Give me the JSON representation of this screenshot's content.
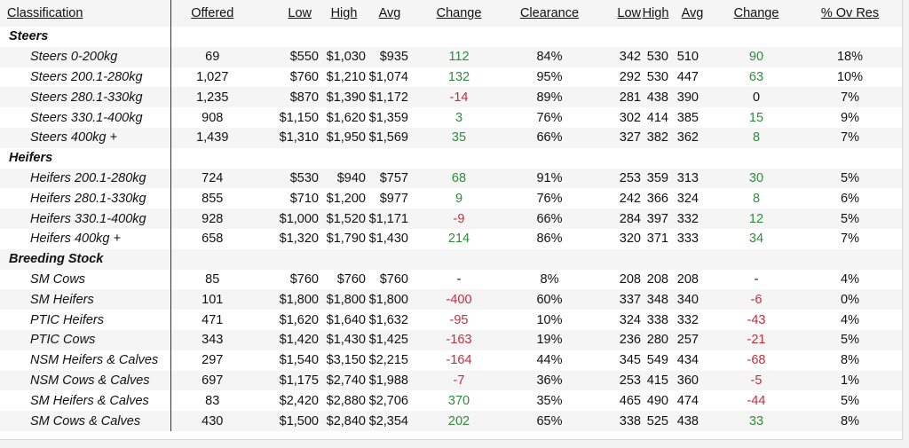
{
  "headers": {
    "classification": "Classification",
    "offered": "Offered",
    "low": "Low",
    "high": "High",
    "avg": "Avg",
    "change": "Change",
    "clearance": "Clearance",
    "low2": "Low",
    "high2": "High",
    "avg2": "Avg",
    "change2": "Change",
    "ov_res": "% Ov Res"
  },
  "sections": [
    {
      "title": "Steers",
      "rows": [
        {
          "cls": "Steers 0-200kg",
          "offered": "69",
          "low": "$550",
          "high": "$1,030",
          "avg": "$935",
          "change": "112",
          "clearance": "84%",
          "low2": "342",
          "high2": "530",
          "avg2": "510",
          "change2": "90",
          "ov": "18%"
        },
        {
          "cls": "Steers 200.1-280kg",
          "offered": "1,027",
          "low": "$760",
          "high": "$1,210",
          "avg": "$1,074",
          "change": "132",
          "clearance": "95%",
          "low2": "292",
          "high2": "530",
          "avg2": "447",
          "change2": "63",
          "ov": "10%"
        },
        {
          "cls": "Steers 280.1-330kg",
          "offered": "1,235",
          "low": "$870",
          "high": "$1,390",
          "avg": "$1,172",
          "change": "-14",
          "clearance": "89%",
          "low2": "281",
          "high2": "438",
          "avg2": "390",
          "change2": "0",
          "ov": "7%"
        },
        {
          "cls": "Steers 330.1-400kg",
          "offered": "908",
          "low": "$1,150",
          "high": "$1,620",
          "avg": "$1,359",
          "change": "3",
          "clearance": "76%",
          "low2": "302",
          "high2": "414",
          "avg2": "385",
          "change2": "15",
          "ov": "9%"
        },
        {
          "cls": "Steers 400kg +",
          "offered": "1,439",
          "low": "$1,310",
          "high": "$1,950",
          "avg": "$1,569",
          "change": "35",
          "clearance": "66%",
          "low2": "327",
          "high2": "382",
          "avg2": "362",
          "change2": "8",
          "ov": "7%"
        }
      ]
    },
    {
      "title": "Heifers",
      "rows": [
        {
          "cls": "Heifers 200.1-280kg",
          "offered": "724",
          "low": "$530",
          "high": "$940",
          "avg": "$757",
          "change": "68",
          "clearance": "91%",
          "low2": "253",
          "high2": "359",
          "avg2": "313",
          "change2": "30",
          "ov": "5%"
        },
        {
          "cls": "Heifers 280.1-330kg",
          "offered": "855",
          "low": "$710",
          "high": "$1,200",
          "avg": "$977",
          "change": "9",
          "clearance": "76%",
          "low2": "242",
          "high2": "366",
          "avg2": "324",
          "change2": "8",
          "ov": "6%"
        },
        {
          "cls": "Heifers 330.1-400kg",
          "offered": "928",
          "low": "$1,000",
          "high": "$1,520",
          "avg": "$1,171",
          "change": "-9",
          "clearance": "66%",
          "low2": "284",
          "high2": "397",
          "avg2": "332",
          "change2": "12",
          "ov": "5%"
        },
        {
          "cls": "Heifers 400kg +",
          "offered": "658",
          "low": "$1,320",
          "high": "$1,790",
          "avg": "$1,430",
          "change": "214",
          "clearance": "86%",
          "low2": "320",
          "high2": "371",
          "avg2": "333",
          "change2": "34",
          "ov": "7%"
        }
      ]
    },
    {
      "title": "Breeding Stock",
      "rows": [
        {
          "cls": "SM Cows",
          "offered": "85",
          "low": "$760",
          "high": "$760",
          "avg": "$760",
          "change": "-",
          "clearance": "8%",
          "low2": "208",
          "high2": "208",
          "avg2": "208",
          "change2": "-",
          "ov": "4%"
        },
        {
          "cls": "SM Heifers",
          "offered": "101",
          "low": "$1,800",
          "high": "$1,800",
          "avg": "$1,800",
          "change": "-400",
          "clearance": "60%",
          "low2": "337",
          "high2": "348",
          "avg2": "340",
          "change2": "-6",
          "ov": "0%"
        },
        {
          "cls": "PTIC Heifers",
          "offered": "471",
          "low": "$1,620",
          "high": "$1,640",
          "avg": "$1,632",
          "change": "-95",
          "clearance": "10%",
          "low2": "324",
          "high2": "338",
          "avg2": "332",
          "change2": "-43",
          "ov": "4%"
        },
        {
          "cls": "PTIC Cows",
          "offered": "343",
          "low": "$1,420",
          "high": "$1,430",
          "avg": "$1,425",
          "change": "-163",
          "clearance": "19%",
          "low2": "236",
          "high2": "280",
          "avg2": "257",
          "change2": "-21",
          "ov": "5%"
        },
        {
          "cls": "NSM Heifers & Calves",
          "offered": "297",
          "low": "$1,540",
          "high": "$3,150",
          "avg": "$2,215",
          "change": "-164",
          "clearance": "44%",
          "low2": "345",
          "high2": "549",
          "avg2": "434",
          "change2": "-68",
          "ov": "8%"
        },
        {
          "cls": "NSM Cows & Calves",
          "offered": "697",
          "low": "$1,175",
          "high": "$2,740",
          "avg": "$1,988",
          "change": "-7",
          "clearance": "36%",
          "low2": "253",
          "high2": "415",
          "avg2": "360",
          "change2": "-5",
          "ov": "1%"
        },
        {
          "cls": "SM Heifers & Calves",
          "offered": "83",
          "low": "$2,420",
          "high": "$2,880",
          "avg": "$2,706",
          "change": "370",
          "clearance": "35%",
          "low2": "465",
          "high2": "490",
          "avg2": "474",
          "change2": "-44",
          "ov": "5%"
        },
        {
          "cls": "SM Cows & Calves",
          "offered": "430",
          "low": "$1,500",
          "high": "$2,840",
          "avg": "$2,354",
          "change": "202",
          "clearance": "65%",
          "low2": "338",
          "high2": "525",
          "avg2": "438",
          "change2": "33",
          "ov": "8%"
        }
      ]
    }
  ],
  "colors": {
    "positive": "#2e8b3e",
    "negative": "#c0303c",
    "neutral": "#111111",
    "band": "#f5f5f5"
  }
}
